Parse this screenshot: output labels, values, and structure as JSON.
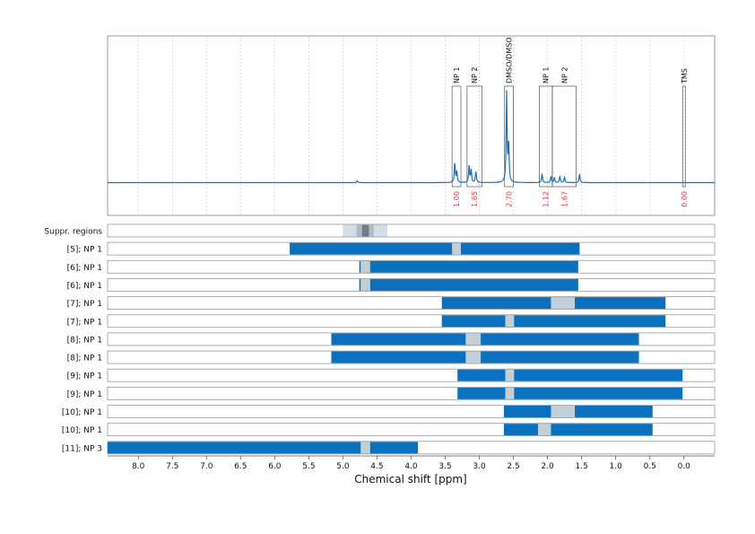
{
  "chart_data": {
    "type": "nmr-spectrum-with-range-bars",
    "xlabel": "Chemical shift [ppm]",
    "x_reversed": true,
    "xlim": [
      8.45,
      -0.45
    ],
    "x_ticks": [
      8.0,
      7.5,
      7.0,
      6.5,
      6.0,
      5.5,
      5.0,
      4.5,
      4.0,
      3.5,
      3.0,
      2.5,
      2.0,
      1.5,
      1.0,
      0.5,
      0.0
    ],
    "x_tick_labels": [
      "8.0",
      "7.5",
      "7.0",
      "6.5",
      "6.0",
      "5.5",
      "5.0",
      "4.5",
      "4.0",
      "3.5",
      "3.0",
      "2.5",
      "2.0",
      "1.5",
      "1.0",
      "0.5",
      "0.0"
    ],
    "grid": "vertical dotted",
    "colors": {
      "spectrum": "#1f6fb4",
      "bar": "#0b71be",
      "gap": "#c3cfd6",
      "supp_light": "#d5dee5",
      "supp_mid": "#b0bcc5",
      "supp_dark": "#6b7e8c",
      "integral": "#e03030",
      "frame": "#9a9a9a"
    },
    "spectrum_peaks": [
      {
        "ppm": 4.79,
        "height": 0.02
      },
      {
        "ppm": 3.36,
        "height": 0.23
      },
      {
        "ppm": 3.33,
        "height": 0.12
      },
      {
        "ppm": 3.15,
        "height": 0.2
      },
      {
        "ppm": 3.12,
        "height": 0.14
      },
      {
        "ppm": 3.05,
        "height": 0.13
      },
      {
        "ppm": 2.6,
        "height": 1.0
      },
      {
        "ppm": 2.57,
        "height": 0.45
      },
      {
        "ppm": 2.08,
        "height": 0.1
      },
      {
        "ppm": 1.95,
        "height": 0.07
      },
      {
        "ppm": 1.9,
        "height": 0.06
      },
      {
        "ppm": 1.82,
        "height": 0.07
      },
      {
        "ppm": 1.75,
        "height": 0.06
      },
      {
        "ppm": 1.53,
        "height": 0.1
      }
    ],
    "region_boxes": [
      {
        "label": "NP 1",
        "from": 3.4,
        "to": 3.27,
        "integral": "1.00"
      },
      {
        "label": "NP 2",
        "from": 3.18,
        "to": 2.96,
        "integral": "1.65"
      },
      {
        "label": "DMSO/DMSO",
        "from": 2.63,
        "to": 2.5,
        "integral": "2.70"
      },
      {
        "label": "NP 1",
        "from": 2.12,
        "to": 1.93,
        "integral": "1.12"
      },
      {
        "label": "NP 2",
        "from": 1.93,
        "to": 1.58,
        "integral": "1.67"
      },
      {
        "label": "TMS",
        "from": 0.02,
        "to": -0.02,
        "integral": "0.00"
      }
    ],
    "suppressed_regions": {
      "label": "Suppr. regions",
      "outer": [
        5.0,
        4.35
      ],
      "mid": [
        4.8,
        4.55
      ],
      "inner": [
        4.72,
        4.62
      ]
    },
    "rows": [
      {
        "label": "[5]; NP 1",
        "from": 5.78,
        "to": 1.53,
        "gaps": [
          [
            3.4,
            3.27
          ]
        ]
      },
      {
        "label": "[6]; NP 1",
        "from": 4.76,
        "to": 1.55,
        "gaps": [
          [
            4.74,
            4.6
          ]
        ]
      },
      {
        "label": "[6]; NP 1",
        "from": 4.76,
        "to": 1.55,
        "gaps": [
          [
            4.74,
            4.6
          ]
        ]
      },
      {
        "label": "[7]; NP 1",
        "from": 3.55,
        "to": 0.27,
        "gaps": [
          [
            1.95,
            1.6
          ]
        ]
      },
      {
        "label": "[7]; NP 1",
        "from": 3.55,
        "to": 0.27,
        "gaps": [
          [
            2.62,
            2.49
          ]
        ]
      },
      {
        "label": "[8]; NP 1",
        "from": 5.17,
        "to": 0.66,
        "gaps": [
          [
            3.2,
            2.98
          ]
        ]
      },
      {
        "label": "[8]; NP 1",
        "from": 5.17,
        "to": 0.66,
        "gaps": [
          [
            3.2,
            2.98
          ]
        ]
      },
      {
        "label": "[9]; NP 1",
        "from": 3.32,
        "to": 0.02,
        "gaps": [
          [
            2.62,
            2.49
          ]
        ]
      },
      {
        "label": "[9]; NP 1",
        "from": 3.32,
        "to": 0.02,
        "gaps": [
          [
            2.62,
            2.49
          ]
        ]
      },
      {
        "label": "[10]; NP 1",
        "from": 2.64,
        "to": 0.46,
        "gaps": [
          [
            1.95,
            1.6
          ]
        ]
      },
      {
        "label": "[10]; NP 1",
        "from": 2.64,
        "to": 0.46,
        "gaps": [
          [
            2.14,
            1.95
          ]
        ]
      },
      {
        "label": "[11]; NP 3",
        "from": 8.45,
        "to": 3.9,
        "gaps": [
          [
            4.74,
            4.6
          ]
        ]
      }
    ]
  }
}
